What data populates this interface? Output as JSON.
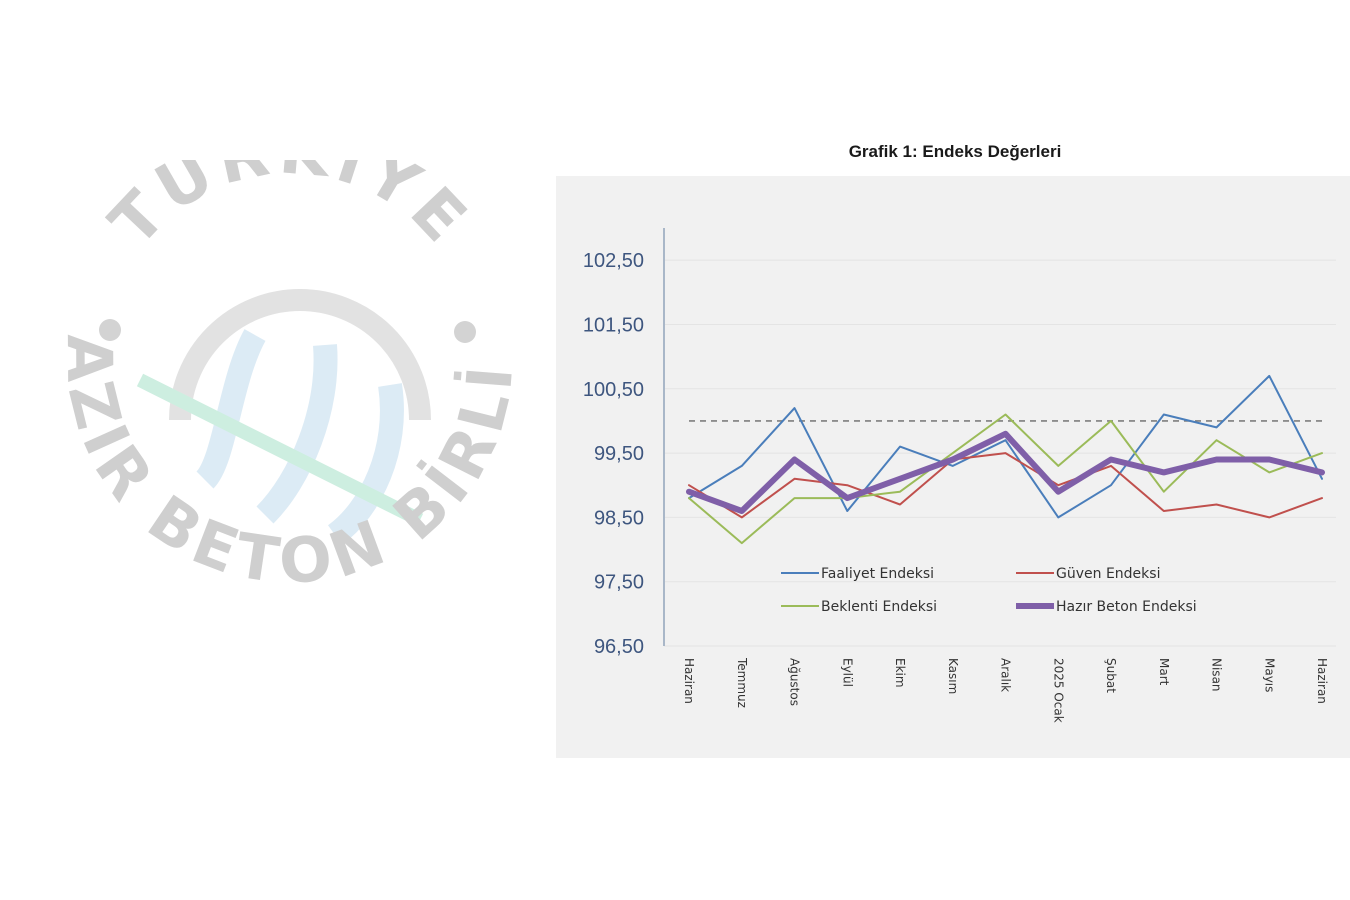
{
  "logo": {
    "text_top": "TÜRKİYE",
    "text_bottom": "HAZIR BETON BİRLİĞİ",
    "colors": {
      "text": "#cfcfcf",
      "globe_lines": "#dcebf5",
      "globe_arc": "#e2e2e2",
      "accent": "#cdeee0"
    }
  },
  "chart_data": {
    "type": "line",
    "title": "Grafik 1: Endeks Değerleri",
    "categories": [
      "Haziran",
      "Temmuz",
      "Ağustos",
      "Eylül",
      "Ekim",
      "Kasım",
      "Aralık",
      "2025 Ocak",
      "Şubat",
      "Mart",
      "Nisan",
      "Mayıs",
      "Haziran"
    ],
    "y_ticks": [
      "102,50",
      "101,50",
      "100,50",
      "99,50",
      "98,50",
      "97,50",
      "96,50"
    ],
    "ylim": [
      96.5,
      103.0
    ],
    "reference_line": 100.0,
    "grid": true,
    "legend_position": "bottom-center",
    "series": [
      {
        "name": "Faaliyet Endeksi",
        "color": "#4a7ebb",
        "width": 2,
        "values": [
          98.8,
          99.3,
          100.2,
          98.6,
          99.6,
          99.3,
          99.7,
          98.5,
          99.0,
          100.1,
          99.9,
          100.7,
          99.1
        ]
      },
      {
        "name": "Güven Endeksi",
        "color": "#c0504d",
        "width": 2,
        "values": [
          99.0,
          98.5,
          99.1,
          99.0,
          98.7,
          99.4,
          99.5,
          99.0,
          99.3,
          98.6,
          98.7,
          98.5,
          98.8
        ]
      },
      {
        "name": "Beklenti Endeksi",
        "color": "#9bbb59",
        "width": 2,
        "values": [
          98.8,
          98.1,
          98.8,
          98.8,
          98.9,
          99.5,
          100.1,
          99.3,
          100.0,
          98.9,
          99.7,
          99.2,
          99.5
        ]
      },
      {
        "name": "Hazır Beton Endeksi",
        "color": "#7f5fa8",
        "width": 6,
        "values": [
          98.9,
          98.6,
          99.4,
          98.8,
          99.1,
          99.4,
          99.8,
          98.9,
          99.4,
          99.2,
          99.4,
          99.4,
          99.2
        ]
      }
    ]
  }
}
